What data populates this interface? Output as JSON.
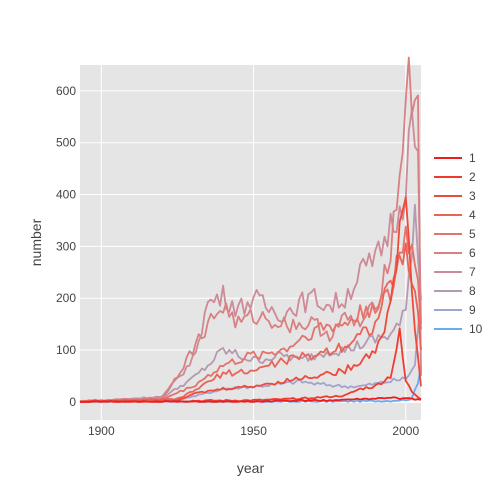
{
  "chart_data": {
    "type": "line",
    "title": "",
    "xlabel": "year",
    "ylabel": "number",
    "xlim": [
      1893,
      2005
    ],
    "ylim": [
      -35,
      650
    ],
    "xticks": [
      1900,
      1950,
      2000
    ],
    "yticks": [
      0,
      100,
      200,
      300,
      400,
      500,
      600
    ],
    "grid": true,
    "legend_position": "right",
    "series": [
      {
        "name": "1",
        "color": "#ee1c1c",
        "points": [
          [
            1893,
            0
          ],
          [
            1920,
            0
          ],
          [
            1950,
            0
          ],
          [
            1960,
            2
          ],
          [
            1975,
            3
          ],
          [
            1985,
            5
          ],
          [
            1990,
            6
          ],
          [
            1995,
            8
          ],
          [
            2000,
            6
          ],
          [
            2005,
            4
          ]
        ]
      },
      {
        "name": "2",
        "color": "#ef3b2f",
        "points": [
          [
            1893,
            0
          ],
          [
            1930,
            2
          ],
          [
            1950,
            3
          ],
          [
            1960,
            5
          ],
          [
            1970,
            8
          ],
          [
            1980,
            12
          ],
          [
            1985,
            25
          ],
          [
            1990,
            30
          ],
          [
            1995,
            50
          ],
          [
            1998,
            130
          ],
          [
            2000,
            40
          ],
          [
            2002,
            20
          ],
          [
            2005,
            5
          ]
        ]
      },
      {
        "name": "3",
        "color": "#ee4a3c",
        "points": [
          [
            1893,
            0
          ],
          [
            1925,
            3
          ],
          [
            1930,
            15
          ],
          [
            1940,
            25
          ],
          [
            1950,
            30
          ],
          [
            1960,
            40
          ],
          [
            1970,
            50
          ],
          [
            1980,
            60
          ],
          [
            1990,
            100
          ],
          [
            1995,
            180
          ],
          [
            2000,
            420
          ],
          [
            2002,
            200
          ],
          [
            2005,
            30
          ]
        ]
      },
      {
        "name": "4",
        "color": "#e96458",
        "points": [
          [
            1893,
            0
          ],
          [
            1925,
            5
          ],
          [
            1930,
            20
          ],
          [
            1940,
            55
          ],
          [
            1950,
            60
          ],
          [
            1960,
            80
          ],
          [
            1970,
            90
          ],
          [
            1980,
            110
          ],
          [
            1990,
            150
          ],
          [
            1997,
            260
          ],
          [
            2000,
            280
          ],
          [
            2003,
            220
          ],
          [
            2005,
            100
          ]
        ]
      },
      {
        "name": "5",
        "color": "#e4726a",
        "points": [
          [
            1893,
            2
          ],
          [
            1920,
            5
          ],
          [
            1930,
            30
          ],
          [
            1940,
            70
          ],
          [
            1950,
            90
          ],
          [
            1960,
            100
          ],
          [
            1970,
            140
          ],
          [
            1980,
            150
          ],
          [
            1990,
            190
          ],
          [
            1995,
            200
          ],
          [
            2000,
            330
          ],
          [
            2004,
            250
          ],
          [
            2005,
            140
          ]
        ]
      },
      {
        "name": "6",
        "color": "#d88082",
        "points": [
          [
            1893,
            0
          ],
          [
            1920,
            5
          ],
          [
            1930,
            100
          ],
          [
            1935,
            150
          ],
          [
            1940,
            185
          ],
          [
            1945,
            150
          ],
          [
            1950,
            165
          ],
          [
            1955,
            160
          ],
          [
            1960,
            150
          ],
          [
            1965,
            150
          ],
          [
            1970,
            150
          ],
          [
            1975,
            130
          ],
          [
            1980,
            160
          ],
          [
            1985,
            150
          ],
          [
            1990,
            180
          ],
          [
            1995,
            300
          ],
          [
            1998,
            430
          ],
          [
            2000,
            610
          ],
          [
            2002,
            600
          ],
          [
            2004,
            580
          ],
          [
            2005,
            50
          ]
        ]
      },
      {
        "name": "7",
        "color": "#cd8a97",
        "points": [
          [
            1893,
            0
          ],
          [
            1920,
            10
          ],
          [
            1930,
            80
          ],
          [
            1935,
            190
          ],
          [
            1940,
            205
          ],
          [
            1945,
            180
          ],
          [
            1950,
            200
          ],
          [
            1955,
            180
          ],
          [
            1960,
            170
          ],
          [
            1965,
            190
          ],
          [
            1970,
            200
          ],
          [
            1975,
            185
          ],
          [
            1980,
            200
          ],
          [
            1985,
            250
          ],
          [
            1990,
            270
          ],
          [
            1995,
            340
          ],
          [
            1999,
            390
          ],
          [
            2002,
            550
          ],
          [
            2004,
            440
          ],
          [
            2005,
            150
          ]
        ]
      },
      {
        "name": "8",
        "color": "#b499b0",
        "points": [
          [
            1893,
            0
          ],
          [
            1920,
            8
          ],
          [
            1930,
            45
          ],
          [
            1935,
            70
          ],
          [
            1940,
            100
          ],
          [
            1945,
            90
          ],
          [
            1950,
            80
          ],
          [
            1955,
            85
          ],
          [
            1960,
            90
          ],
          [
            1965,
            80
          ],
          [
            1970,
            90
          ],
          [
            1975,
            100
          ],
          [
            1980,
            100
          ],
          [
            1985,
            110
          ],
          [
            1990,
            120
          ],
          [
            1995,
            130
          ],
          [
            1998,
            150
          ],
          [
            2000,
            170
          ],
          [
            2003,
            380
          ],
          [
            2005,
            200
          ]
        ]
      },
      {
        "name": "9",
        "color": "#9fa5cf",
        "points": [
          [
            1893,
            0
          ],
          [
            1920,
            3
          ],
          [
            1930,
            10
          ],
          [
            1940,
            25
          ],
          [
            1950,
            30
          ],
          [
            1960,
            35
          ],
          [
            1965,
            40
          ],
          [
            1970,
            35
          ],
          [
            1980,
            30
          ],
          [
            1985,
            30
          ],
          [
            1990,
            35
          ],
          [
            1995,
            40
          ],
          [
            2000,
            45
          ],
          [
            2003,
            70
          ],
          [
            2005,
            200
          ]
        ]
      },
      {
        "name": "10",
        "color": "#68abf2",
        "points": [
          [
            1893,
            0
          ],
          [
            1950,
            0
          ],
          [
            1980,
            1
          ],
          [
            1995,
            2
          ],
          [
            2000,
            4
          ],
          [
            2002,
            6
          ],
          [
            2004,
            40
          ],
          [
            2005,
            70
          ]
        ]
      }
    ]
  }
}
